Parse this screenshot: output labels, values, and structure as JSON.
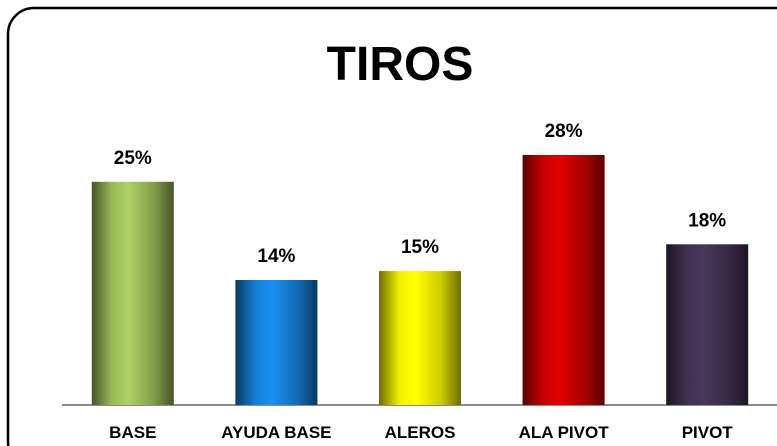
{
  "chart_data": {
    "type": "bar",
    "title": "TIROS",
    "categories": [
      "BASE",
      "AYUDA BASE",
      "ALEROS",
      "ALA PIVOT",
      "PIVOT"
    ],
    "values": [
      25,
      14,
      15,
      28,
      18
    ],
    "value_labels": [
      "25%",
      "14%",
      "15%",
      "28%",
      "18%"
    ],
    "colors": [
      "#9bbb59",
      "#1580d8",
      "#f2f200",
      "#c80000",
      "#3f3151"
    ]
  }
}
